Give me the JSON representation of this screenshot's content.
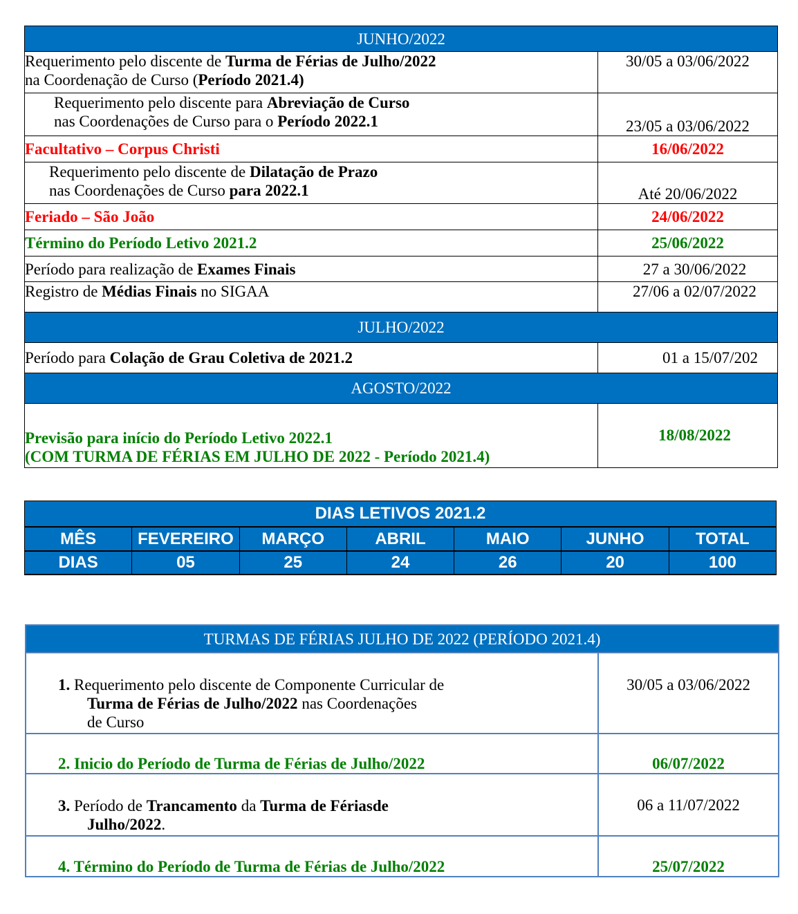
{
  "colors": {
    "header_bg": "#0070C0",
    "red": "#FF0000",
    "green": "#008000",
    "table3_border": "#4F81BD"
  },
  "table1": {
    "sections": [
      {
        "title": "JUNHO/2022",
        "rows": [
          {
            "style": "normal",
            "lines": [
              [
                {
                  "t": "Requerimento pelo discente de "
                },
                {
                  "t": "Turma de Férias de Julho/2022",
                  "b": true
                }
              ],
              [
                {
                  "t": "na Coordenação de Curso ("
                },
                {
                  "t": "Período 2021.4)",
                  "b": true
                }
              ]
            ],
            "date": "30/05 a 03/06/2022"
          },
          {
            "style": "normal",
            "indent": true,
            "lines": [
              [
                {
                  "t": "Requerimento pelo discente para "
                },
                {
                  "t": "Abreviação de Curso",
                  "b": true
                }
              ],
              [
                {
                  "t": " nas Coordenações de Curso para o "
                },
                {
                  "t": "Período 2022.1",
                  "b": true
                }
              ]
            ],
            "date": "23/05 a 03/06/2022"
          },
          {
            "style": "red",
            "lines": [
              [
                {
                  "t": "Facultativo – Corpus Christi"
                }
              ]
            ],
            "date": "16/06/2022"
          },
          {
            "style": "normal",
            "indent": true,
            "lines": [
              [
                {
                  "t": "Requerimento pelo discente de "
                },
                {
                  "t": "Dilatação de Prazo",
                  "b": true
                }
              ],
              [
                {
                  "t": " nas Coordenações de Curso "
                },
                {
                  "t": "para 2022.1",
                  "b": true
                }
              ]
            ],
            "date": "Até 20/06/2022"
          },
          {
            "style": "red",
            "lines": [
              [
                {
                  "t": "Feriado – São João"
                }
              ]
            ],
            "date": "24/06/2022"
          },
          {
            "style": "green",
            "lines": [
              [
                {
                  "t": "Término do Período Letivo 2021.2"
                }
              ]
            ],
            "date": "25/06/2022"
          },
          {
            "style": "normal",
            "lines": [
              [
                {
                  "t": "Período para realização de "
                },
                {
                  "t": "Exames Finais",
                  "b": true
                }
              ]
            ],
            "date": "27 a 30/06/2022"
          },
          {
            "style": "normal",
            "lines": [
              [
                {
                  "t": "Registro de "
                },
                {
                  "t": "Médias Finais",
                  "b": true
                },
                {
                  "t": " no SIGAA"
                }
              ]
            ],
            "date": "27/06 a 02/07/2022"
          }
        ]
      },
      {
        "title": "JULHO/2022",
        "rows": [
          {
            "style": "normal",
            "lines": [
              [
                {
                  "t": "Período para "
                },
                {
                  "t": "Colação de Grau Coletiva de  2021.2",
                  "b": true
                }
              ]
            ],
            "date": "01 a 15/07/202"
          }
        ]
      },
      {
        "title": "AGOSTO/2022",
        "rows": [
          {
            "style": "green",
            "lines": [
              [
                {
                  "t": "Previsão para início do Período Letivo 2022.1"
                }
              ],
              [
                {
                  "t": "(COM TURMA DE FÉRIAS EM JULHO DE 2022 - Período 2021.4)"
                }
              ]
            ],
            "date": "18/08/2022"
          }
        ]
      }
    ]
  },
  "table2": {
    "title": "DIAS LETIVOS 2021.2",
    "header": [
      "MÊS",
      "FEVEREIRO",
      "MARÇO",
      "ABRIL",
      "MAIO",
      "JUNHO",
      "TOTAL"
    ],
    "values": [
      "DIAS",
      "05",
      "25",
      "24",
      "26",
      "20",
      "100"
    ]
  },
  "table3": {
    "title": "TURMAS DE FÉRIAS JULHO DE 2022 (PERÍODO 2021.4)",
    "rows": [
      {
        "style": "normal",
        "lines": [
          [
            {
              "t": "1. ",
              "b": true
            },
            {
              "t": "Requerimento pelo discente de Componente Curricular de"
            }
          ],
          [
            {
              "t": "Turma de Férias de Julho/2022",
              "b": true
            },
            {
              "t": " nas Coordenações"
            }
          ],
          [
            {
              "t": "de Curso"
            }
          ]
        ],
        "date": "30/05 a 03/06/2022"
      },
      {
        "style": "green",
        "lines": [
          [
            {
              "t": "2.  Inicio do Período de Turma de Férias de Julho/2022"
            }
          ]
        ],
        "date": "06/07/2022"
      },
      {
        "style": "normal",
        "lines": [
          [
            {
              "t": "3. ",
              "b": true
            },
            {
              "t": "Período de "
            },
            {
              "t": "Trancamento",
              "b": true
            },
            {
              "t": " da "
            },
            {
              "t": "Turma de Fériasde",
              "b": true
            }
          ],
          [
            {
              "t": "Julho/2022",
              "b": true
            },
            {
              "t": "."
            }
          ]
        ],
        "date": "06 a 11/07/2022"
      },
      {
        "style": "green",
        "lines": [
          [
            {
              "t": "4.  Término do Período de Turma de Férias de Julho/2022"
            }
          ]
        ],
        "date": "25/07/2022"
      }
    ]
  }
}
